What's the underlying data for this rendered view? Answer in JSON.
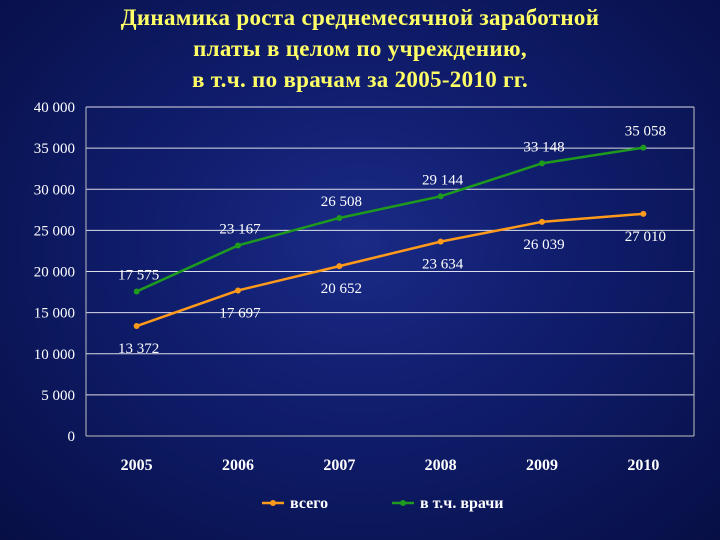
{
  "title_lines": [
    "Динамика роста среднемесячной заработной",
    "платы в целом по учреждению,",
    "в т.ч. по врачам за 2005-2010 гг."
  ],
  "colors": {
    "series_total": "#ff9a1a",
    "series_doctors": "#1e9a1e",
    "gridline": "#ffffff",
    "axis": "#c0c0c0"
  },
  "chart_data": {
    "type": "line",
    "title": "Динамика роста среднемесячной заработной платы в целом по учреждению, в т.ч. по врачам за 2005-2010 гг.",
    "categories": [
      "2005",
      "2006",
      "2007",
      "2008",
      "2009",
      "2010"
    ],
    "ylim": [
      0,
      40000
    ],
    "y_ticks": [
      "0",
      "5 000",
      "10 000",
      "15 000",
      "20 000",
      "25 000",
      "30 000",
      "35 000",
      "40 000"
    ],
    "grid": true,
    "legend_position": "bottom",
    "series": [
      {
        "name": "всего",
        "values": [
          13372,
          17697,
          20652,
          23634,
          26039,
          27010
        ],
        "labels": [
          "13 372",
          "17 697",
          "20 652",
          "23 634",
          "26 039",
          "27 010"
        ]
      },
      {
        "name": "в т.ч. врачи",
        "values": [
          17575,
          23167,
          26508,
          29144,
          33148,
          35058
        ],
        "labels": [
          "17 575",
          "23 167",
          "26 508",
          "29 144",
          "33 148",
          "35 058"
        ]
      }
    ]
  }
}
